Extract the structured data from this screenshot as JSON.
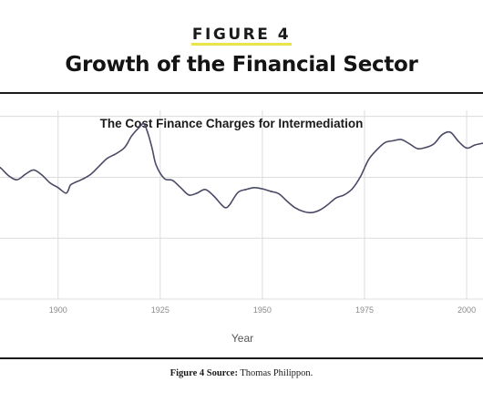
{
  "figure_label": "FIGURE 4",
  "title": "Growth of the Financial Sector",
  "source": {
    "label": "Figure 4 Source:",
    "text": "Thomas Philippon."
  },
  "colors": {
    "line": "#4a4a66",
    "grid": "#dcdcdc",
    "highlight": "#e8e44a"
  },
  "chart_data": {
    "type": "line",
    "title": "The Cost Finance Charges for Intermediation",
    "xlabel": "Year",
    "ylabel": "",
    "xlim": [
      1884,
      2004
    ],
    "xticks": [
      1900,
      1925,
      1950,
      1975,
      2000
    ],
    "xtick_labels": [
      "1900",
      "1925",
      "1950",
      "1975",
      "2000"
    ],
    "grid": true,
    "series": [
      {
        "x": [
          1884,
          1886,
          1888,
          1890,
          1892,
          1894,
          1896,
          1898,
          1900,
          1902,
          1903,
          1904,
          1906,
          1908,
          1910,
          1912,
          1914,
          1916,
          1917,
          1918,
          1920,
          1921,
          1922,
          1923,
          1924,
          1926,
          1928,
          1930,
          1932,
          1934,
          1936,
          1938,
          1940,
          1941,
          1942,
          1944,
          1946,
          1948,
          1950,
          1952,
          1954,
          1956,
          1958,
          1960,
          1962,
          1964,
          1966,
          1968,
          1970,
          1972,
          1974,
          1976,
          1978,
          1980,
          1982,
          1984,
          1986,
          1988,
          1990,
          1992,
          1994,
          1996,
          1998,
          2000,
          2002,
          2004
        ],
        "values": [
          2.25,
          2.15,
          2.02,
          1.96,
          2.05,
          2.12,
          2.04,
          1.91,
          1.83,
          1.74,
          1.87,
          1.91,
          1.97,
          2.05,
          2.18,
          2.31,
          2.38,
          2.47,
          2.56,
          2.68,
          2.83,
          2.88,
          2.72,
          2.48,
          2.2,
          1.98,
          1.95,
          1.83,
          1.71,
          1.74,
          1.8,
          1.7,
          1.55,
          1.5,
          1.55,
          1.75,
          1.8,
          1.83,
          1.81,
          1.77,
          1.73,
          1.61,
          1.5,
          1.44,
          1.42,
          1.46,
          1.55,
          1.66,
          1.71,
          1.81,
          2.01,
          2.29,
          2.45,
          2.57,
          2.6,
          2.62,
          2.55,
          2.47,
          2.49,
          2.55,
          2.7,
          2.74,
          2.59,
          2.48,
          2.53,
          2.56
        ]
      }
    ]
  }
}
